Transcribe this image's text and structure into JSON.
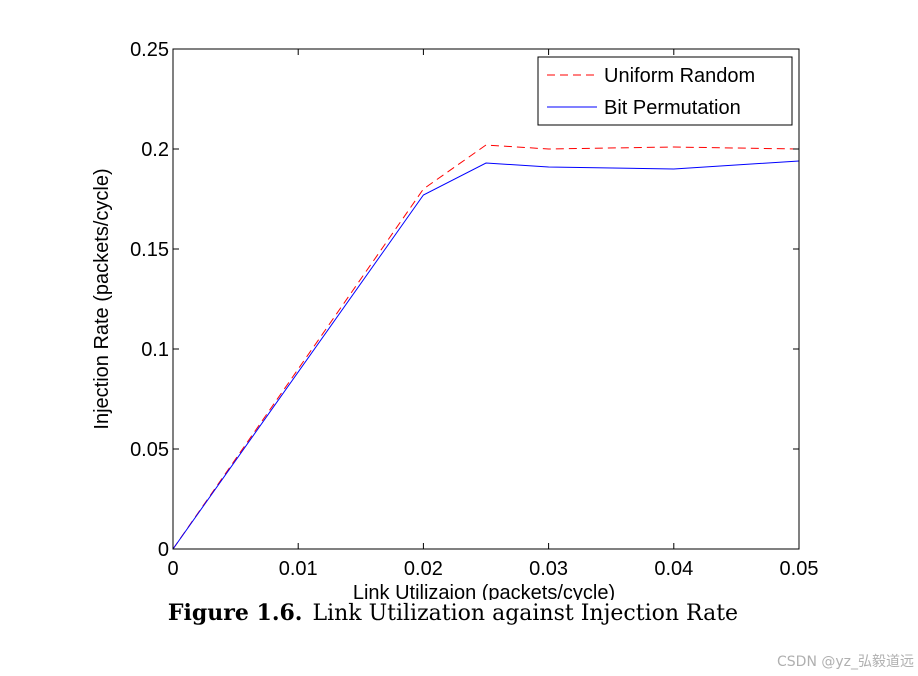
{
  "chart_data": {
    "type": "line",
    "title": "",
    "xlabel": "Link Utilizaion (packets/cycle)",
    "ylabel": "Injection Rate (packets/cycle)",
    "xlim": [
      0,
      0.05
    ],
    "ylim": [
      0,
      0.25
    ],
    "x_ticks": [
      "0",
      "0.01",
      "0.02",
      "0.03",
      "0.04",
      "0.05"
    ],
    "y_ticks": [
      "0",
      "0.05",
      "0.1",
      "0.15",
      "0.2",
      "0.25"
    ],
    "grid": false,
    "legend_position": "top-right",
    "series": [
      {
        "name": "Uniform Random",
        "style": "dashed",
        "color": "#ff0000",
        "x": [
          0,
          0.02,
          0.025,
          0.03,
          0.04,
          0.05
        ],
        "y": [
          0,
          0.18,
          0.202,
          0.2,
          0.201,
          0.2
        ]
      },
      {
        "name": "Bit Permutation",
        "style": "solid",
        "color": "#0000ff",
        "x": [
          0,
          0.02,
          0.025,
          0.03,
          0.04,
          0.05
        ],
        "y": [
          0,
          0.177,
          0.193,
          0.191,
          0.19,
          0.194
        ]
      }
    ]
  },
  "caption": {
    "label": "Figure 1.6.",
    "text": "Link Utilization against Injection Rate"
  },
  "watermark": "CSDN @yz_弘毅道远"
}
